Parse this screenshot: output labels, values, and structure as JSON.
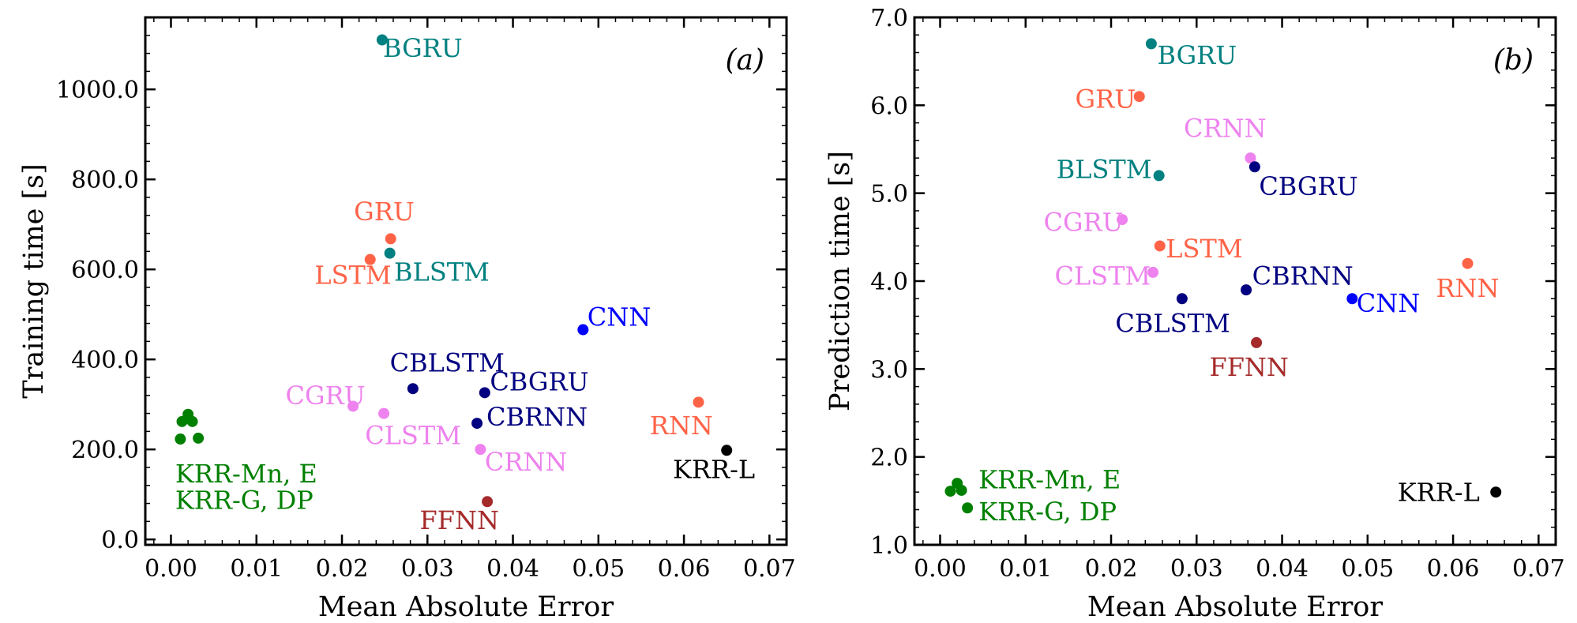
{
  "chart_data": [
    {
      "type": "scatter",
      "panel_label": "(a)",
      "xlabel": "Mean Absolute Error",
      "ylabel": "Training time [s]",
      "xlim": [
        -0.003,
        0.072
      ],
      "ylim": [
        -12,
        1160
      ],
      "xticks": [
        0.0,
        0.01,
        0.02,
        0.03,
        0.04,
        0.05,
        0.06,
        0.07
      ],
      "xtick_labels": [
        "0.00",
        "0.01",
        "0.02",
        "0.03",
        "0.04",
        "0.05",
        "0.06",
        "0.07"
      ],
      "yticks": [
        0,
        200,
        400,
        600,
        800,
        1000
      ],
      "ytick_labels": [
        "0.0",
        "200.0",
        "400.0",
        "600.0",
        "800.0",
        "1000.0"
      ],
      "grid": false,
      "points": [
        {
          "x": 0.0247,
          "y": 1110,
          "color": "#008080"
        },
        {
          "x": 0.0257,
          "y": 668,
          "color": "#ff6347"
        },
        {
          "x": 0.0233,
          "y": 622,
          "color": "#ff6347"
        },
        {
          "x": 0.0256,
          "y": 636,
          "color": "#008080"
        },
        {
          "x": 0.0482,
          "y": 466,
          "color": "#0000ff"
        },
        {
          "x": 0.0283,
          "y": 335,
          "color": "#000080"
        },
        {
          "x": 0.0367,
          "y": 326,
          "color": "#000080"
        },
        {
          "x": 0.0213,
          "y": 296,
          "color": "#ee82ee"
        },
        {
          "x": 0.0249,
          "y": 280,
          "color": "#ee82ee"
        },
        {
          "x": 0.0358,
          "y": 258,
          "color": "#000080"
        },
        {
          "x": 0.0362,
          "y": 200,
          "color": "#ee82ee"
        },
        {
          "x": 0.0617,
          "y": 305,
          "color": "#ff6347"
        },
        {
          "x": 0.065,
          "y": 198,
          "color": "#000000"
        },
        {
          "x": 0.037,
          "y": 84,
          "color": "#a52a2a"
        },
        {
          "x": 0.002,
          "y": 278,
          "color": "#008000"
        },
        {
          "x": 0.0013,
          "y": 262,
          "color": "#008000"
        },
        {
          "x": 0.0025,
          "y": 262,
          "color": "#008000"
        },
        {
          "x": 0.0011,
          "y": 223,
          "color": "#008000"
        },
        {
          "x": 0.0032,
          "y": 225,
          "color": "#008000"
        }
      ],
      "labels": [
        {
          "text": "BGRU",
          "x": 0.0248,
          "y": 1072,
          "color": "#008080",
          "anchor": "start"
        },
        {
          "text": "GRU",
          "x": 0.0214,
          "y": 709,
          "color": "#ff6347",
          "anchor": "start"
        },
        {
          "text": "LSTM",
          "x": 0.0168,
          "y": 568,
          "color": "#ff6347",
          "anchor": "start"
        },
        {
          "text": "BLSTM",
          "x": 0.0261,
          "y": 575,
          "color": "#008080",
          "anchor": "start"
        },
        {
          "text": "CNN",
          "x": 0.0487,
          "y": 475,
          "color": "#0000ff",
          "anchor": "start"
        },
        {
          "text": "CBLSTM",
          "x": 0.0256,
          "y": 373,
          "color": "#000080",
          "anchor": "start"
        },
        {
          "text": "CBGRU",
          "x": 0.0373,
          "y": 331,
          "color": "#000080",
          "anchor": "start"
        },
        {
          "text": "CGRU",
          "x": 0.0134,
          "y": 300,
          "color": "#ee82ee",
          "anchor": "start"
        },
        {
          "text": "CBRNN",
          "x": 0.0369,
          "y": 253,
          "color": "#000080",
          "anchor": "start"
        },
        {
          "text": "CLSTM",
          "x": 0.0227,
          "y": 212,
          "color": "#ee82ee",
          "anchor": "start"
        },
        {
          "text": "RNN",
          "x": 0.056,
          "y": 234,
          "color": "#ff6347",
          "anchor": "start"
        },
        {
          "text": "CRNN",
          "x": 0.0367,
          "y": 153,
          "color": "#ee82ee",
          "anchor": "start"
        },
        {
          "text": "KRR-L",
          "x": 0.0587,
          "y": 136,
          "color": "#000000",
          "anchor": "start"
        },
        {
          "text": "KRR-Mn, E",
          "x": 0.0005,
          "y": 127,
          "color": "#008000",
          "anchor": "start"
        },
        {
          "text": "KRR-G, DP",
          "x": 0.0005,
          "y": 68,
          "color": "#008000",
          "anchor": "start"
        },
        {
          "text": "FFNN",
          "x": 0.0291,
          "y": 23,
          "color": "#a52a2a",
          "anchor": "start"
        }
      ]
    },
    {
      "type": "scatter",
      "panel_label": "(b)",
      "xlabel": "Mean Absolute Error",
      "ylabel": "Prediction time [s]",
      "xlim": [
        -0.003,
        0.072
      ],
      "ylim": [
        1.0,
        7.0
      ],
      "xticks": [
        0.0,
        0.01,
        0.02,
        0.03,
        0.04,
        0.05,
        0.06,
        0.07
      ],
      "xtick_labels": [
        "0.00",
        "0.01",
        "0.02",
        "0.03",
        "0.04",
        "0.05",
        "0.06",
        "0.07"
      ],
      "yticks": [
        1.0,
        2.0,
        3.0,
        4.0,
        5.0,
        6.0,
        7.0
      ],
      "ytick_labels": [
        "1.0",
        "2.0",
        "3.0",
        "4.0",
        "5.0",
        "6.0",
        "7.0"
      ],
      "grid": false,
      "points": [
        {
          "x": 0.0247,
          "y": 6.7,
          "color": "#008080"
        },
        {
          "x": 0.0233,
          "y": 6.1,
          "color": "#ff6347"
        },
        {
          "x": 0.0363,
          "y": 5.4,
          "color": "#ee82ee"
        },
        {
          "x": 0.0256,
          "y": 5.2,
          "color": "#008080"
        },
        {
          "x": 0.0368,
          "y": 5.3,
          "color": "#000080"
        },
        {
          "x": 0.0213,
          "y": 4.7,
          "color": "#ee82ee"
        },
        {
          "x": 0.0257,
          "y": 4.4,
          "color": "#ff6347"
        },
        {
          "x": 0.0249,
          "y": 4.1,
          "color": "#ee82ee"
        },
        {
          "x": 0.0617,
          "y": 4.2,
          "color": "#ff6347"
        },
        {
          "x": 0.0358,
          "y": 3.9,
          "color": "#000080"
        },
        {
          "x": 0.0283,
          "y": 3.8,
          "color": "#000080"
        },
        {
          "x": 0.0482,
          "y": 3.8,
          "color": "#0000ff"
        },
        {
          "x": 0.037,
          "y": 3.3,
          "color": "#a52a2a"
        },
        {
          "x": 0.065,
          "y": 1.6,
          "color": "#000000"
        },
        {
          "x": 0.002,
          "y": 1.7,
          "color": "#008000"
        },
        {
          "x": 0.0012,
          "y": 1.61,
          "color": "#008000"
        },
        {
          "x": 0.0025,
          "y": 1.62,
          "color": "#008000"
        },
        {
          "x": 0.0032,
          "y": 1.42,
          "color": "#008000"
        }
      ],
      "labels": [
        {
          "text": "BGRU",
          "x": 0.0254,
          "y": 6.47,
          "color": "#008080",
          "anchor": "start"
        },
        {
          "text": "GRU",
          "x": 0.0158,
          "y": 5.97,
          "color": "#ff6347",
          "anchor": "start"
        },
        {
          "text": "CRNN",
          "x": 0.0285,
          "y": 5.64,
          "color": "#ee82ee",
          "anchor": "start"
        },
        {
          "text": "BLSTM",
          "x": 0.0136,
          "y": 5.17,
          "color": "#008080",
          "anchor": "start"
        },
        {
          "text": "CBGRU",
          "x": 0.0373,
          "y": 4.98,
          "color": "#000080",
          "anchor": "start"
        },
        {
          "text": "CGRU",
          "x": 0.0121,
          "y": 4.57,
          "color": "#ee82ee",
          "anchor": "start"
        },
        {
          "text": "LSTM",
          "x": 0.0264,
          "y": 4.27,
          "color": "#ff6347",
          "anchor": "start"
        },
        {
          "text": "CBRNN",
          "x": 0.0365,
          "y": 3.96,
          "color": "#000080",
          "anchor": "start"
        },
        {
          "text": "CLSTM",
          "x": 0.0134,
          "y": 3.96,
          "color": "#ee82ee",
          "anchor": "start"
        },
        {
          "text": "RNN",
          "x": 0.058,
          "y": 3.82,
          "color": "#ff6347",
          "anchor": "start"
        },
        {
          "text": "CNN",
          "x": 0.0487,
          "y": 3.65,
          "color": "#0000ff",
          "anchor": "start"
        },
        {
          "text": "CBLSTM",
          "x": 0.0205,
          "y": 3.42,
          "color": "#000080",
          "anchor": "start"
        },
        {
          "text": "FFNN",
          "x": 0.0315,
          "y": 2.92,
          "color": "#a52a2a",
          "anchor": "start"
        },
        {
          "text": "KRR-Mn, E",
          "x": 0.0045,
          "y": 1.64,
          "color": "#008000",
          "anchor": "start"
        },
        {
          "text": "KRR-L",
          "x": 0.0535,
          "y": 1.5,
          "color": "#000000",
          "anchor": "start"
        },
        {
          "text": "KRR-G, DP",
          "x": 0.0045,
          "y": 1.28,
          "color": "#008000",
          "anchor": "start"
        }
      ]
    }
  ]
}
